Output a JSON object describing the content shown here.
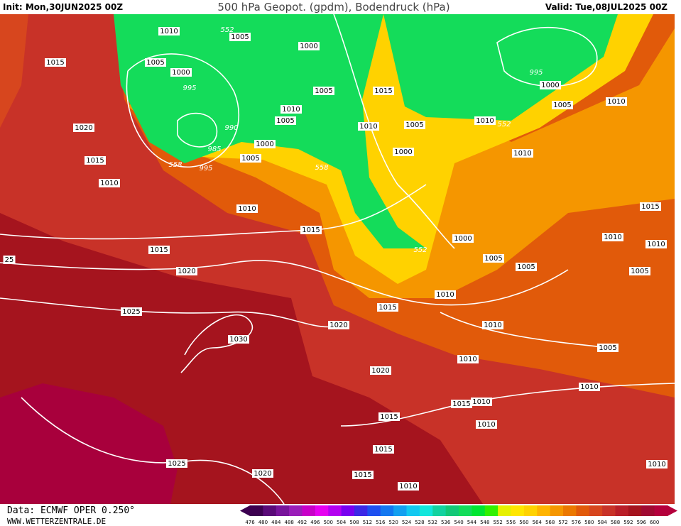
{
  "header": {
    "init": "Init: Mon,30JUN2025 00Z",
    "title": "500 hPa Geopot. (gpdm), Bodendruck (hPa)",
    "valid": "Valid: Tue,08JUL2025 00Z"
  },
  "isobar_labels": [
    "1010",
    "552",
    "1005",
    "1000",
    "1015",
    "1005",
    "1000",
    "995",
    "1005",
    "1015",
    "995",
    "1000",
    "1005",
    "1010",
    "1010",
    "1005",
    "990",
    "1010",
    "1005",
    "1010",
    "552",
    "1020",
    "985",
    "1000",
    "1000",
    "1010",
    "1015",
    "1005",
    "558",
    "995",
    "558",
    "1010",
    "1010",
    "1015",
    "1015",
    "1000",
    "1010",
    "1010",
    "552",
    "1015",
    "1005",
    "1005",
    "1005",
    "25",
    "1020",
    "1010",
    "1015",
    "1025",
    "1020",
    "1010",
    "1030",
    "1005",
    "1010",
    "1020",
    "1010",
    "1015",
    "1010",
    "1015",
    "1010",
    "1015",
    "1025",
    "1010",
    "1020",
    "1015",
    "1010"
  ],
  "colorbar": {
    "labels": [
      "476",
      "480",
      "484",
      "488",
      "492",
      "496",
      "500",
      "504",
      "508",
      "512",
      "516",
      "520",
      "524",
      "528",
      "532",
      "536",
      "540",
      "544",
      "548",
      "552",
      "556",
      "560",
      "564",
      "568",
      "572",
      "576",
      "580",
      "584",
      "588",
      "592",
      "596",
      "600"
    ],
    "colors": [
      "#3c0050",
      "#5a0a78",
      "#78149b",
      "#9b1eb9",
      "#c800c8",
      "#e600f0",
      "#b400f0",
      "#7800f0",
      "#3c28e6",
      "#1e50f0",
      "#1478f0",
      "#14a0f0",
      "#14c8f0",
      "#14e6dc",
      "#14d2a0",
      "#14c878",
      "#14dc5a",
      "#00e632",
      "#32f000",
      "#e6f000",
      "#ffe600",
      "#ffd200",
      "#ffb400",
      "#f59600",
      "#eb7800",
      "#e15a0a",
      "#d7461e",
      "#c83228",
      "#b91e28",
      "#a5141e",
      "#a00a32",
      "#b4003c"
    ]
  },
  "footer": {
    "source": "Data: ECMWF OPER 0.250°",
    "site": "WWW.WETTERZENTRALE.DE"
  }
}
